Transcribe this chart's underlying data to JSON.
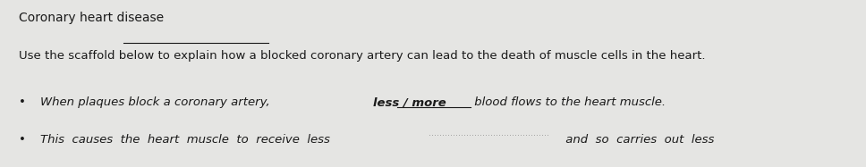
{
  "background_color": "#e5e5e3",
  "title": "Coronary heart disease",
  "subtitle": "Use the scaffold below to explain how a blocked coronary artery can lead to the death of muscle cells in the heart.",
  "bullet1_normal": "When plaques block a coronary artery, ",
  "bullet1_bold_underline": "less / more",
  "bullet1_end": " blood flows to the heart muscle.",
  "bullet2_part1": "This  causes  the  heart  muscle  to  receive  less",
  "bullet2_dots": ".............................................",
  "bullet2_end": " and  so  carries  out  less",
  "bottom_dots": ".......................................",
  "title_fontsize": 10,
  "subtitle_fontsize": 9.5,
  "bullet_fontsize": 9.5,
  "text_color": "#1a1a1a",
  "dots_color": "#999999"
}
